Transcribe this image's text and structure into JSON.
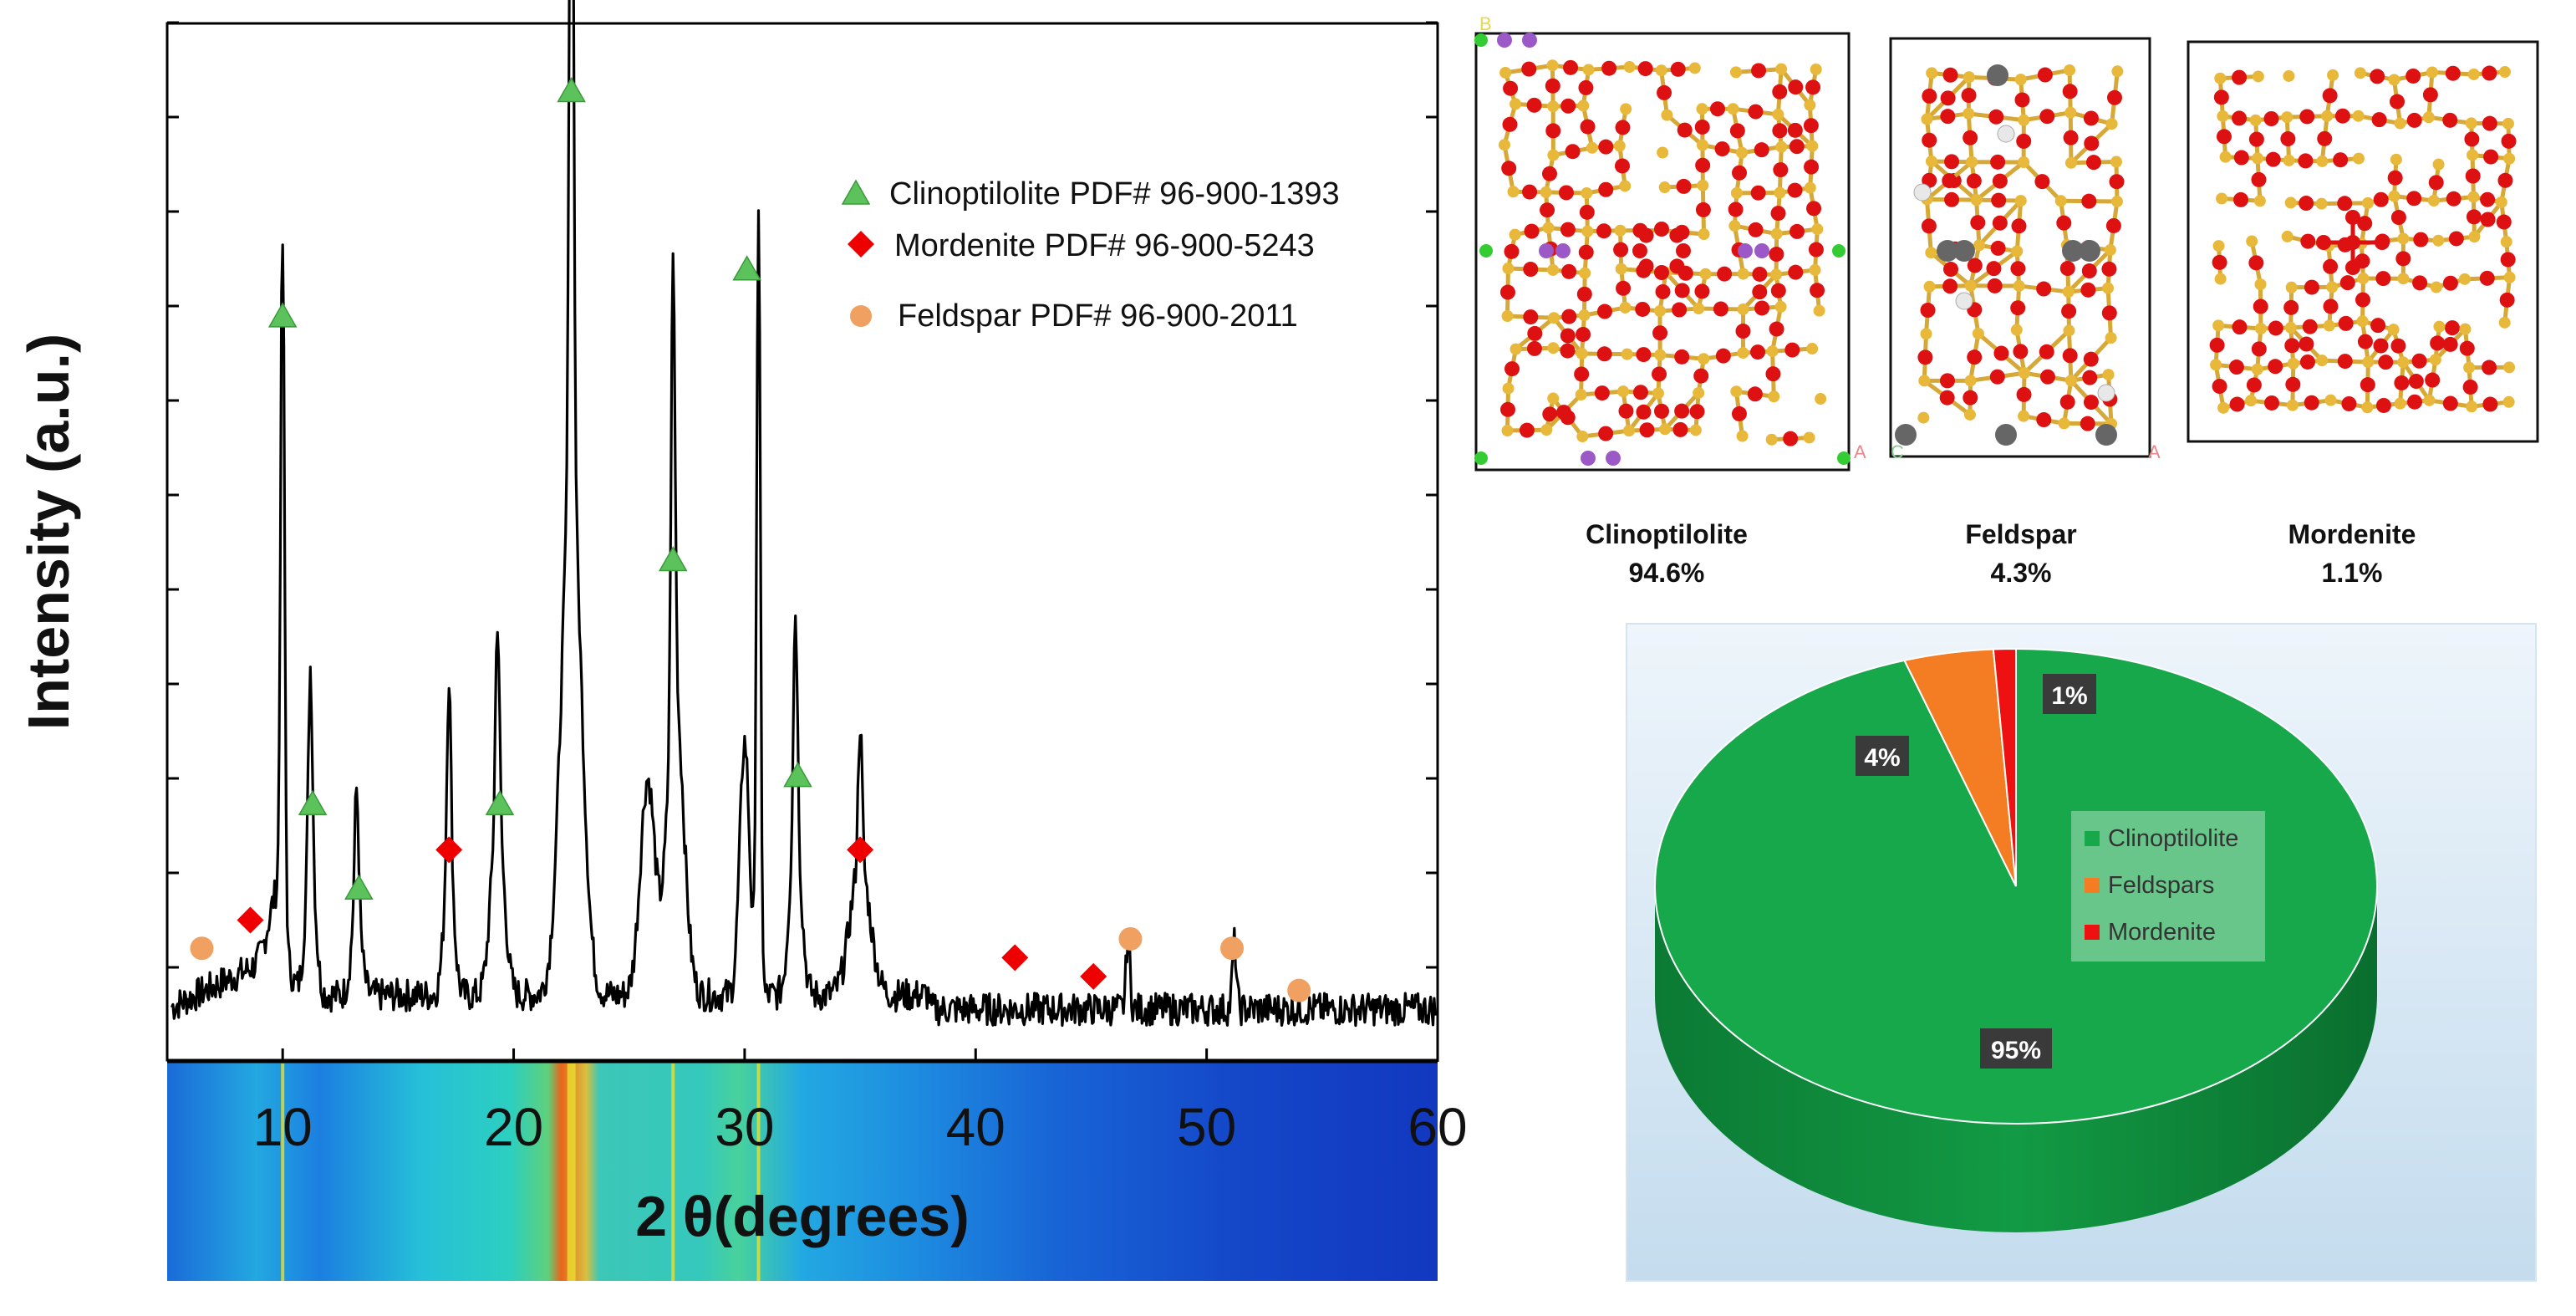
{
  "colors": {
    "clinoptilolite": "#18a84c",
    "feldspar": "#f47c22",
    "mordenite": "#ee1111",
    "xrd_line": "#000000",
    "marker_triangle": "#5cc25c",
    "marker_diamond": "#ee0000",
    "marker_circle": "#f0a060"
  },
  "chart_data": [
    {
      "type": "line",
      "title": "",
      "xlabel": "2 θ(degrees)",
      "ylabel": "Intensity (a.u.)",
      "xlim": [
        5,
        60
      ],
      "ylim": [
        0,
        1.0
      ],
      "x_ticks": [
        10,
        20,
        30,
        40,
        50,
        60
      ],
      "x_tick_labels": [
        "10",
        "20",
        "30",
        "40",
        "50",
        "60"
      ],
      "background_peaks": [
        {
          "x": 9.8,
          "h": 0.07,
          "w": 0.55
        },
        {
          "x": 11.2,
          "h": 0.15,
          "w": 0.3
        },
        {
          "x": 13.2,
          "h": 0.09,
          "w": 0.3
        },
        {
          "x": 17.2,
          "h": 0.14,
          "w": 0.3
        },
        {
          "x": 19.3,
          "h": 0.19,
          "w": 0.4
        },
        {
          "x": 22.5,
          "h": 0.56,
          "w": 0.6
        },
        {
          "x": 25.8,
          "h": 0.23,
          "w": 0.45
        },
        {
          "x": 27.0,
          "h": 0.32,
          "w": 0.5
        },
        {
          "x": 30.0,
          "h": 0.27,
          "w": 0.3
        },
        {
          "x": 32.2,
          "h": 0.18,
          "w": 0.35
        },
        {
          "x": 35.0,
          "h": 0.14,
          "w": 0.6
        }
      ],
      "peaks": [
        {
          "x": 10.0,
          "y": 0.74
        },
        {
          "x": 11.2,
          "y": 0.2
        },
        {
          "x": 13.2,
          "y": 0.13
        },
        {
          "x": 17.2,
          "y": 0.2
        },
        {
          "x": 19.3,
          "y": 0.21
        },
        {
          "x": 22.5,
          "y": 0.98
        },
        {
          "x": 26.9,
          "y": 0.48
        },
        {
          "x": 30.6,
          "y": 0.82
        },
        {
          "x": 32.2,
          "y": 0.23
        },
        {
          "x": 35.0,
          "y": 0.15
        },
        {
          "x": 46.6,
          "y": 0.08
        },
        {
          "x": 51.2,
          "y": 0.07
        }
      ],
      "series": [
        {
          "name": "Clinoptilolite PDF# 96-900-1393",
          "marker": "triangle",
          "points": [
            {
              "x": 10.0,
              "y": 0.78
            },
            {
              "x": 11.3,
              "y": 0.26
            },
            {
              "x": 13.3,
              "y": 0.17
            },
            {
              "x": 19.4,
              "y": 0.26
            },
            {
              "x": 22.5,
              "y": 1.02
            },
            {
              "x": 26.9,
              "y": 0.52
            },
            {
              "x": 30.1,
              "y": 0.83
            },
            {
              "x": 32.3,
              "y": 0.29
            }
          ]
        },
        {
          "name": "Mordenite PDF# 96-900-5243",
          "marker": "diamond",
          "points": [
            {
              "x": 8.6,
              "y": 0.135
            },
            {
              "x": 17.2,
              "y": 0.21
            },
            {
              "x": 35.0,
              "y": 0.21
            },
            {
              "x": 41.7,
              "y": 0.095
            },
            {
              "x": 45.1,
              "y": 0.075
            }
          ]
        },
        {
          "name": "Feldspar PDF# 96-900-2011",
          "marker": "circle",
          "points": [
            {
              "x": 6.5,
              "y": 0.105
            },
            {
              "x": 46.7,
              "y": 0.115
            },
            {
              "x": 51.1,
              "y": 0.105
            },
            {
              "x": 54.0,
              "y": 0.06
            }
          ]
        }
      ]
    },
    {
      "type": "pie",
      "title": "",
      "categories": [
        "Clinoptilolite",
        "Feldspars",
        "Mordenite"
      ],
      "values": [
        95,
        4,
        1
      ],
      "data_labels": [
        "95%",
        "4%",
        "1%"
      ],
      "legend": [
        "Clinoptilolite",
        "Feldspars",
        "Mordenite"
      ],
      "legend_position": "right"
    }
  ],
  "structures": [
    {
      "name": "Clinoptilolite",
      "percent": "94.6%"
    },
    {
      "name": "Feldspar",
      "percent": "4.3%"
    },
    {
      "name": "Mordenite",
      "percent": "1.1%"
    }
  ],
  "axis_letters": {
    "a": "A",
    "b": "B",
    "c": "C"
  }
}
